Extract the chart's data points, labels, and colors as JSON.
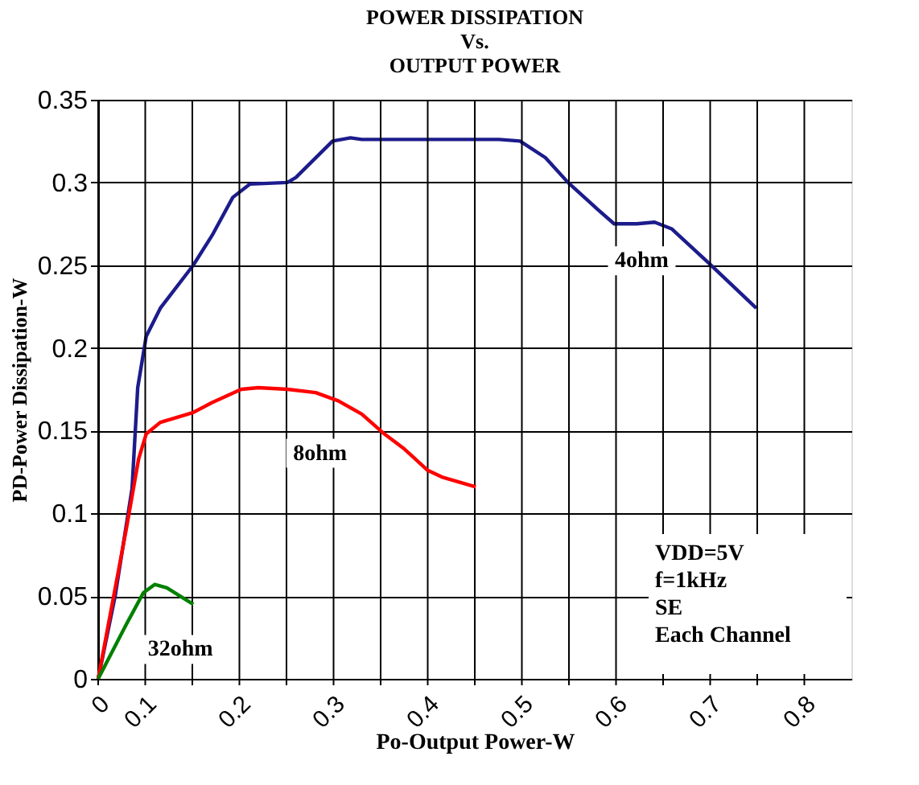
{
  "chart_data": {
    "type": "line",
    "title": [
      "POWER DISSIPATION",
      "Vs.",
      "OUTPUT POWER"
    ],
    "xlabel": "Po-Output Power-W",
    "ylabel": "PD-Power Dissipation-W",
    "xlim": [
      0.05,
      0.85
    ],
    "xticks": [
      {
        "value": 0.05,
        "label": "0"
      },
      0.1,
      {
        "value": 0.15,
        "label": null
      },
      0.2,
      {
        "value": 0.25,
        "label": null
      },
      0.3,
      {
        "value": 0.35,
        "label": null
      },
      0.4,
      {
        "value": 0.45,
        "label": null
      },
      0.5,
      {
        "value": 0.55,
        "label": null
      },
      0.6,
      {
        "value": 0.65,
        "label": null
      },
      0.7,
      {
        "value": 0.75,
        "label": null
      },
      0.8
    ],
    "ylim": [
      0,
      0.35
    ],
    "yticks": [
      0,
      0.05,
      0.1,
      0.15,
      0.2,
      0.25,
      0.3,
      0.35
    ],
    "grid": true,
    "marker": "none",
    "line_style": "solid",
    "annotations": [
      "VDD=5V",
      "f=1kHz",
      "SE",
      "Each Channel"
    ],
    "series": [
      {
        "name": "4ohm",
        "color": "#1c1c8c",
        "x": [
          0.05,
          0.068,
          0.086,
          0.092,
          0.101,
          0.116,
          0.151,
          0.171,
          0.193,
          0.211,
          0.251,
          0.26,
          0.299,
          0.318,
          0.33,
          0.476,
          0.498,
          0.525,
          0.549,
          0.58,
          0.598,
          0.622,
          0.641,
          0.659,
          0.699,
          0.749
        ],
        "values": [
          0,
          0.05,
          0.115,
          0.176,
          0.207,
          0.224,
          0.25,
          0.268,
          0.291,
          0.299,
          0.3,
          0.303,
          0.325,
          0.327,
          0.326,
          0.326,
          0.325,
          0.315,
          0.3,
          0.284,
          0.275,
          0.275,
          0.276,
          0.272,
          0.251,
          0.224
        ]
      },
      {
        "name": "8ohm",
        "color": "#ff0000",
        "x": [
          0.05,
          0.08,
          0.093,
          0.101,
          0.116,
          0.151,
          0.171,
          0.202,
          0.22,
          0.251,
          0.281,
          0.305,
          0.33,
          0.354,
          0.375,
          0.4,
          0.415,
          0.451
        ],
        "values": [
          0,
          0.091,
          0.133,
          0.148,
          0.155,
          0.161,
          0.167,
          0.175,
          0.176,
          0.175,
          0.173,
          0.168,
          0.16,
          0.148,
          0.139,
          0.126,
          0.122,
          0.116
        ]
      },
      {
        "name": "32ohm",
        "color": "#008000",
        "x": [
          0.05,
          0.08,
          0.098,
          0.11,
          0.123,
          0.151
        ],
        "values": [
          0,
          0.033,
          0.052,
          0.057,
          0.055,
          0.045
        ]
      }
    ]
  }
}
